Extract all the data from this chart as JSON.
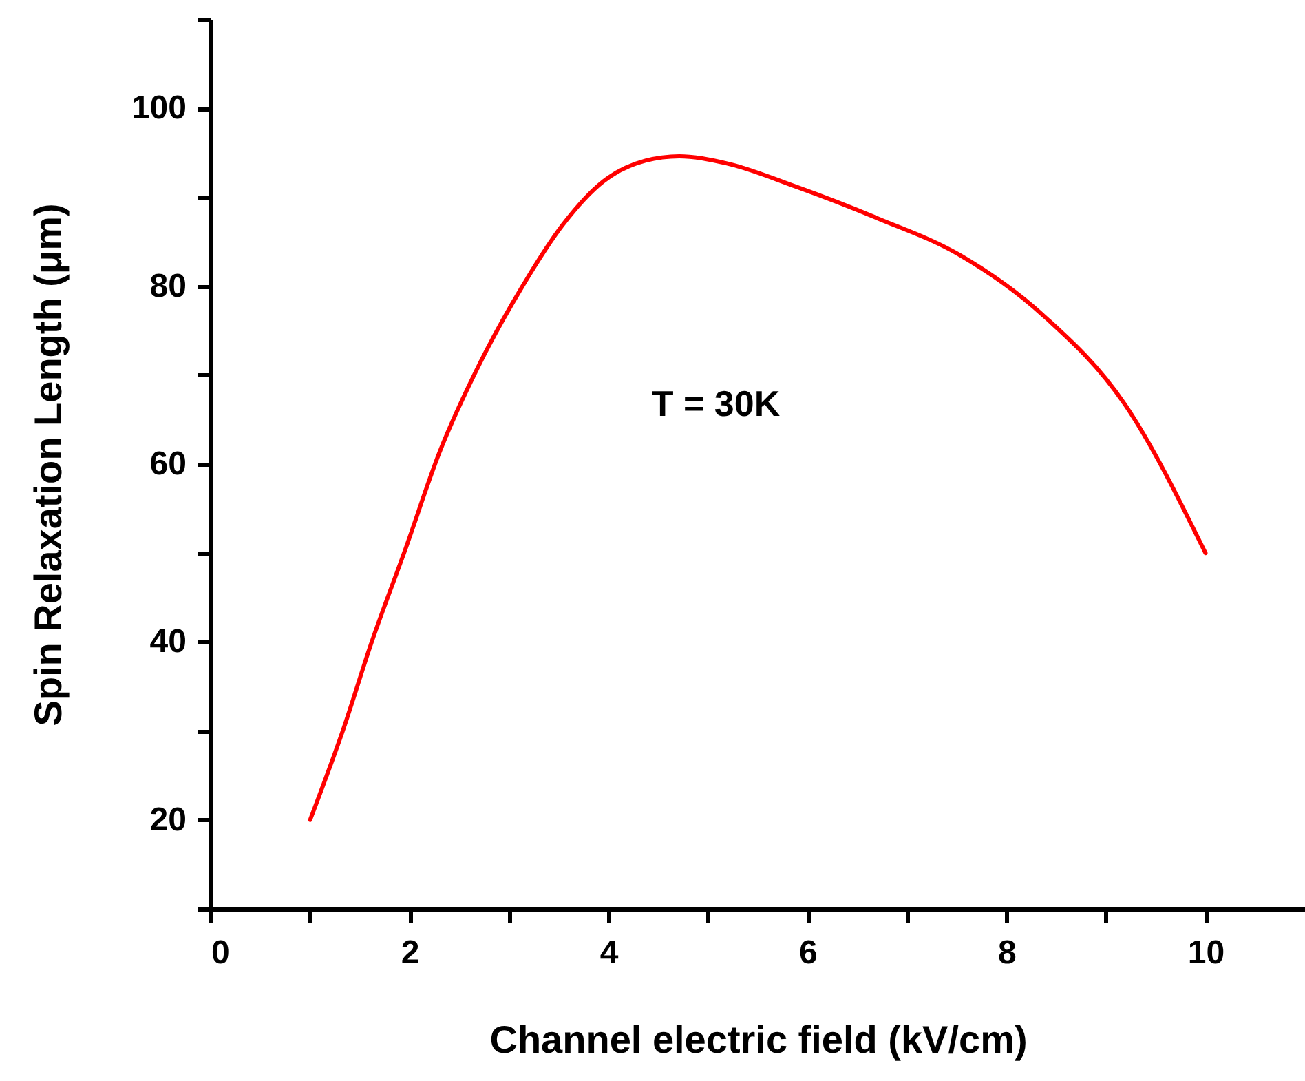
{
  "chart_data": {
    "type": "line",
    "xlabel": "Channel electric field (kV/cm)",
    "ylabel": "Spin Relaxation Length (μm)",
    "annotations": [
      "T = 30K"
    ],
    "series": [
      {
        "color": "#ff0000",
        "x": [
          1.0,
          1.34,
          1.61,
          1.96,
          2.3,
          2.71,
          3.13,
          3.54,
          3.95,
          4.37,
          4.71,
          5.19,
          5.88,
          6.71,
          7.53,
          8.36,
          9.19,
          10.0
        ],
        "values": [
          20,
          30.4,
          39.7,
          50.5,
          61.3,
          71.4,
          79.9,
          86.9,
          91.8,
          94.1,
          94.6,
          93.8,
          91.2,
          87.6,
          83.5,
          76.8,
          66.7,
          50
        ]
      }
    ],
    "xlim": [
      0,
      11
    ],
    "ylim": [
      10,
      110
    ],
    "xticks": [
      0,
      {
        "value": 1,
        "label": null
      },
      2,
      {
        "value": 3,
        "label": null
      },
      4,
      {
        "value": 5,
        "label": null
      },
      6,
      {
        "value": 7,
        "label": null
      },
      8,
      {
        "value": 9,
        "label": null
      },
      10
    ],
    "yticks": [
      {
        "value": 10,
        "label": null
      },
      20,
      {
        "value": 30,
        "label": null
      },
      40,
      {
        "value": 50,
        "label": null
      },
      60,
      {
        "value": 70,
        "label": null
      },
      80,
      {
        "value": 90,
        "label": null
      },
      100,
      {
        "value": 110,
        "label": null
      }
    ],
    "grid": false,
    "marker": "none",
    "line_style": "solid"
  }
}
